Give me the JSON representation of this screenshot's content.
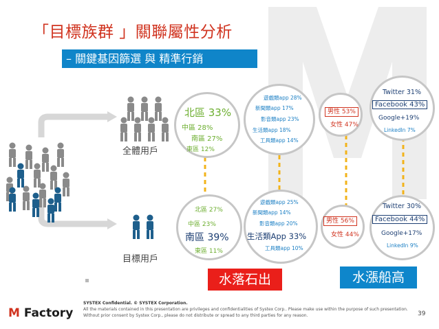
{
  "title": "「目標族群 」關聯屬性分析",
  "subtitle_dash": "–",
  "subtitle_a": "關鍵基因篩選",
  "subtitle_with": "與",
  "subtitle_b": "精準行銷",
  "all_users": {
    "label": "全體用戶",
    "region": {
      "north": "北區 33%",
      "central": "中區 28%",
      "south": "南區 27%",
      "east": "東區 12%"
    },
    "apps": {
      "game": "遊戲類app 28%",
      "news": "新聞類app 17%",
      "media": "影音類app 23%",
      "life": "生活類app 18%",
      "tool": "工具類app 14%"
    },
    "gender": {
      "male": "男性 53%",
      "female": "女性 47%"
    },
    "social": {
      "twitter": "Twitter 31%",
      "facebook": "Facebook 43%",
      "google": "Google+19%",
      "linkedin": "LinkedIn 7%"
    }
  },
  "target_users": {
    "label": "目標用戶",
    "region": {
      "north": "北區 27%",
      "central": "中區 23%",
      "south": "南區 39%",
      "east": "東區 11%"
    },
    "apps": {
      "game": "遊戲類app 25%",
      "news": "新聞類app 14%",
      "media": "影音類app 20%",
      "life": "生活類App 33%",
      "tool": "工具類app 10%"
    },
    "gender": {
      "male": "男性 56%",
      "female": "女性 44%"
    },
    "social": {
      "twitter": "Twitter 30%",
      "facebook": "Facebook 44%",
      "google": "Google+17%",
      "linkedin": "LinkedIn 9%"
    }
  },
  "banner_left": "水落石出",
  "banner_right": "水漲船高",
  "footer": {
    "logo_m": "M",
    "logo_rest": " Factory",
    "confidential": "SYSTEX Confidential. © SYSTEX Corporation.",
    "notice": "All the materials contained in this presentation are privileges and confidentialities of Systex Corp.. Please make use within the purpose of such presentation. Without prior consent by Systex Corp., please do not distribute or spread to any third parties for any reason.",
    "page": "39"
  },
  "colors": {
    "accent_red": "#d0331f",
    "blue": "#0f85c9",
    "green": "#6cae2f",
    "yellow": "#f2b31a"
  }
}
